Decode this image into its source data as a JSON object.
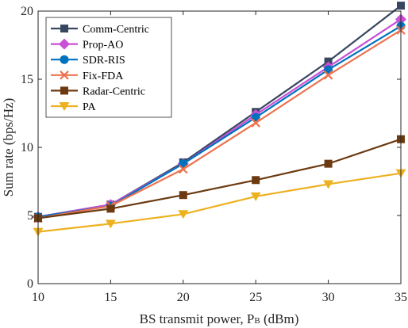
{
  "chart_data": {
    "type": "line",
    "xlabel": "BS transmit power, P",
    "xlabel_sub": "B",
    "xlabel_unit": " (dBm)",
    "ylabel": "Sum rate (bps/Hz)",
    "x": [
      10,
      15,
      20,
      25,
      30,
      35
    ],
    "xlim": [
      10,
      35
    ],
    "ylim": [
      0,
      20
    ],
    "xticks": [
      "10",
      "15",
      "20",
      "25",
      "30",
      "35"
    ],
    "yticks": [
      "0",
      "5",
      "10",
      "15",
      "20"
    ],
    "grid": false,
    "legend_position": "top-left",
    "series": [
      {
        "name": "Comm-Centric",
        "color": "#37475f",
        "marker": "square",
        "values": [
          4.9,
          5.8,
          8.9,
          12.6,
          16.3,
          20.4
        ]
      },
      {
        "name": "Prop-AO",
        "color": "#c94fd6",
        "marker": "diamond",
        "values": [
          4.9,
          5.8,
          8.8,
          12.4,
          15.9,
          19.4
        ]
      },
      {
        "name": "SDR-RIS",
        "color": "#0072bd",
        "marker": "circle",
        "values": [
          4.9,
          5.7,
          8.8,
          12.2,
          15.7,
          18.9
        ]
      },
      {
        "name": "Fix-FDA",
        "color": "#ed7350",
        "marker": "x",
        "values": [
          4.8,
          5.7,
          8.4,
          11.8,
          15.3,
          18.6
        ]
      },
      {
        "name": "Radar-Centric",
        "color": "#6b3a10",
        "marker": "square",
        "values": [
          4.8,
          5.5,
          6.5,
          7.6,
          8.8,
          10.6
        ]
      },
      {
        "name": "PA",
        "color": "#edb120",
        "marker": "triangle-down",
        "values": [
          3.8,
          4.4,
          5.1,
          6.4,
          7.3,
          8.1
        ]
      }
    ]
  }
}
